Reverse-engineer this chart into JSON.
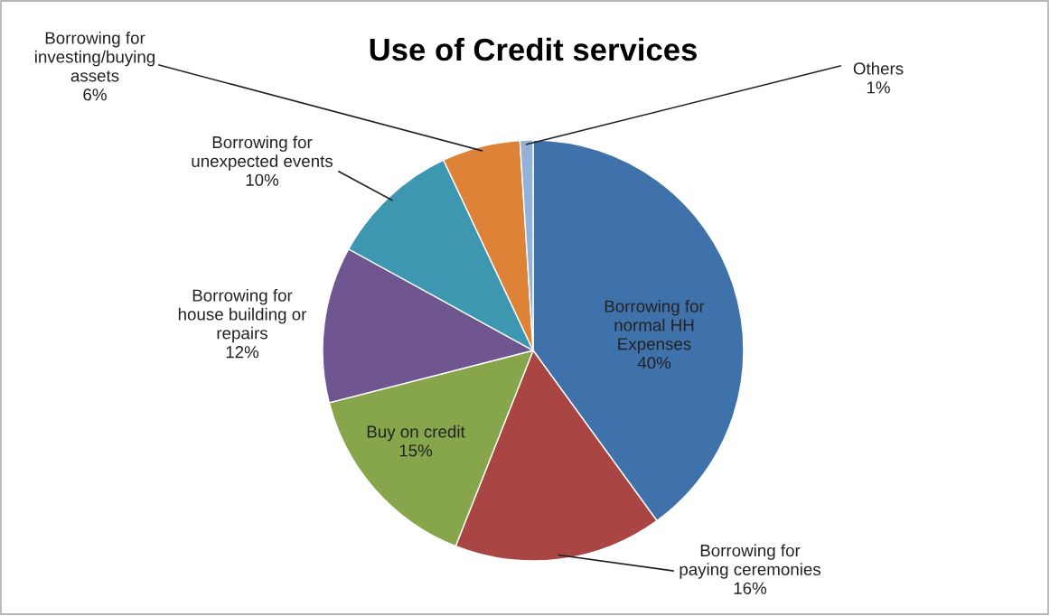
{
  "chart_data": {
    "type": "pie",
    "title": "Use of Credit services",
    "categories": [
      "Borrowing for\nnormal HH\nExpenses",
      "Borrowing for\npaying ceremonies",
      "Buy on credit",
      "Borrowing for\nhouse building or\nrepairs",
      "Borrowing for\nunexpected events",
      "Borrowing for\ninvesting/buying\nassets",
      "Others"
    ],
    "values": [
      40,
      16,
      15,
      12,
      10,
      6,
      1
    ],
    "colors": [
      "#3f71aa",
      "#a94542",
      "#87a54b",
      "#6f5690",
      "#3d97b0",
      "#dd8236",
      "#94b2d8"
    ],
    "value_labels": [
      "40%",
      "16%",
      "15%",
      "12%",
      "10%",
      "6%",
      "1%"
    ],
    "legend": false
  }
}
